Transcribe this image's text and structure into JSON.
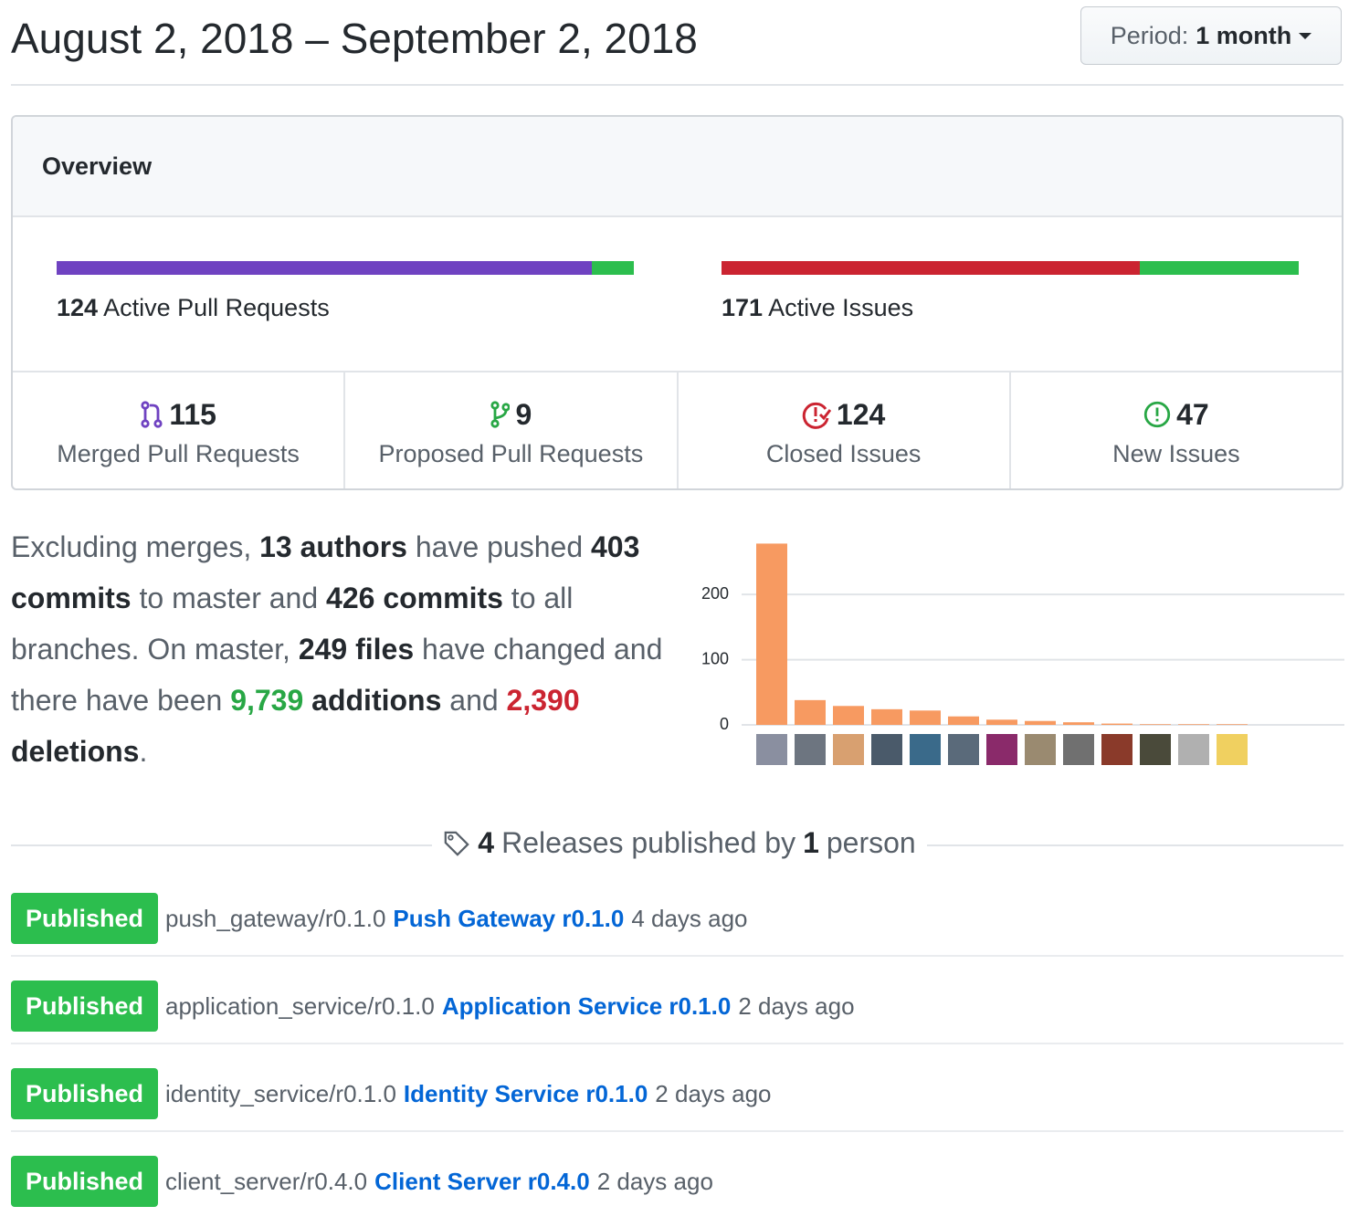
{
  "header": {
    "title": "August 2, 2018 – September 2, 2018",
    "period_label": "Period:",
    "period_value": "1 month"
  },
  "overview": {
    "title": "Overview",
    "pull_requests": {
      "count": 124,
      "label": "Active Pull Requests",
      "merged_color": "#6f42c1",
      "proposed_color": "#2cbe4e"
    },
    "issues": {
      "count": 171,
      "label": "Active Issues",
      "closed_color": "#cb2431",
      "new_color": "#2cbe4e"
    },
    "stats": [
      {
        "value": 115,
        "label": "Merged Pull Requests"
      },
      {
        "value": 9,
        "label": "Proposed Pull Requests"
      },
      {
        "value": 124,
        "label": "Closed Issues"
      },
      {
        "value": 47,
        "label": "New Issues"
      }
    ]
  },
  "summary": {
    "t1": "Excluding merges,",
    "authors": "13 authors",
    "t2": "have pushed",
    "commits_master": "403 commits",
    "t3": "to master and",
    "commits_all": "426 commits",
    "t4": "to all branches. On master,",
    "files": "249 files",
    "t5": "have changed and there have been",
    "additions": "9,739",
    "additions_word": "additions",
    "t6": "and",
    "deletions": "2,390",
    "deletions_word": "deletions",
    "t7": "."
  },
  "chart_data": {
    "type": "bar",
    "categories": [
      null,
      null,
      null,
      null,
      null,
      null,
      null,
      null,
      null,
      null,
      null,
      null,
      null
    ],
    "values": [
      278,
      38,
      29,
      24,
      22,
      13,
      8,
      6,
      4,
      2,
      1,
      1,
      1
    ],
    "color": "#f79a61",
    "ylim": [
      0,
      280
    ],
    "yticks": [
      0,
      100,
      200
    ],
    "grid": true
  },
  "releases": {
    "count": 4,
    "heading": "Releases published by",
    "people": 1,
    "people_word": "person",
    "items": [
      {
        "badge": "Published",
        "tag": "push_gateway/r0.1.0",
        "name": "Push Gateway r0.1.0",
        "time": "4 days ago"
      },
      {
        "badge": "Published",
        "tag": "application_service/r0.1.0",
        "name": "Application Service r0.1.0",
        "time": "2 days ago"
      },
      {
        "badge": "Published",
        "tag": "identity_service/r0.1.0",
        "name": "Identity Service r0.1.0",
        "time": "2 days ago"
      },
      {
        "badge": "Published",
        "tag": "client_server/r0.4.0",
        "name": "Client Server r0.4.0",
        "time": "2 days ago"
      }
    ]
  }
}
